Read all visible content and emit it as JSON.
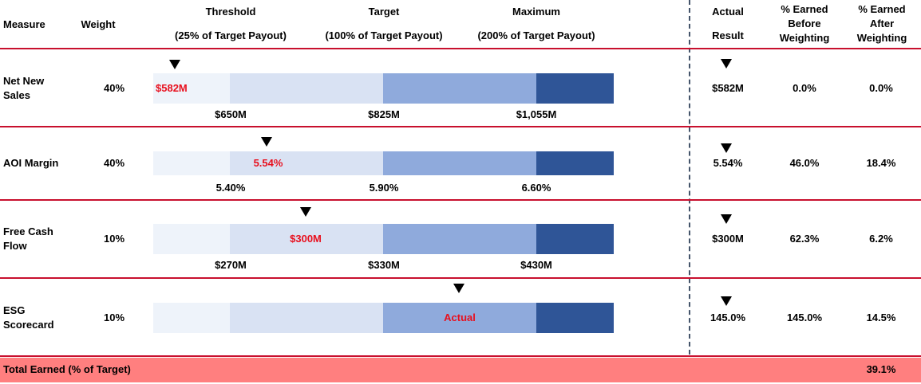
{
  "header": {
    "measure": "Measure",
    "weight": "Weight",
    "threshold": [
      "Threshold",
      "(25% of Target Payout)"
    ],
    "target": [
      "Target",
      "(100% of Target Payout)"
    ],
    "maximum": [
      "Maximum",
      "(200% of Target Payout)"
    ],
    "actual": [
      "Actual",
      "Result"
    ],
    "before": [
      "% Earned",
      "Before",
      "Weighting"
    ],
    "after": [
      "% Earned",
      "After",
      "Weighting"
    ]
  },
  "rows": [
    {
      "measure": [
        "Net New",
        "Sales"
      ],
      "weight": "40%",
      "actual_label": "$582M",
      "threshold": "$650M",
      "target": "$825M",
      "maximum": "$1,055M",
      "actual": "$582M",
      "before": "0.0%",
      "after": "0.0%"
    },
    {
      "measure": [
        "AOI Margin"
      ],
      "weight": "40%",
      "actual_label": "5.54%",
      "threshold": "5.40%",
      "target": "5.90%",
      "maximum": "6.60%",
      "actual": "5.54%",
      "before": "46.0%",
      "after": "18.4%"
    },
    {
      "measure": [
        "Free Cash",
        "Flow"
      ],
      "weight": "10%",
      "actual_label": "$300M",
      "threshold": "$270M",
      "target": "$330M",
      "maximum": "$430M",
      "actual": "$300M",
      "before": "62.3%",
      "after": "6.2%"
    },
    {
      "measure": [
        "ESG",
        "Scorecard"
      ],
      "weight": "10%",
      "actual_label": "Actual",
      "actual": "145.0%",
      "before": "145.0%",
      "after": "14.5%"
    }
  ],
  "total": {
    "label": "Total Earned (% of Target)",
    "value": "39.1%"
  }
}
